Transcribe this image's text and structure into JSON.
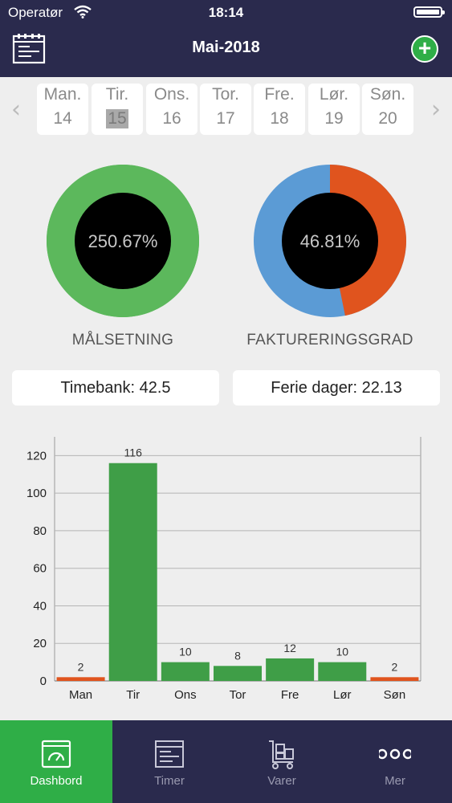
{
  "status_bar": {
    "carrier": "Operatør",
    "time": "18:14"
  },
  "header": {
    "title": "Mai-2018"
  },
  "week": {
    "days": [
      {
        "name": "Man.",
        "date": "14"
      },
      {
        "name": "Tir.",
        "date": "15"
      },
      {
        "name": "Ons.",
        "date": "16"
      },
      {
        "name": "Tor.",
        "date": "17"
      },
      {
        "name": "Fre.",
        "date": "18"
      },
      {
        "name": "Lør.",
        "date": "19"
      },
      {
        "name": "Søn.",
        "date": "20"
      }
    ],
    "selected_index": 1
  },
  "gauges": [
    {
      "value_text": "250.67%",
      "label": "MÅLSETNING",
      "fraction": 1.0,
      "colors": {
        "fill": "#5cb85c",
        "remainder": "#5cb85c"
      }
    },
    {
      "value_text": "46.81%",
      "label": "FAKTURERINGSGRAD",
      "fraction": 0.4681,
      "colors": {
        "fill": "#e0541e",
        "remainder": "#5b9bd5"
      }
    }
  ],
  "info": {
    "timebank": "Timebank: 42.5",
    "ferie": "Ferie dager: 22.13"
  },
  "chart_data": {
    "type": "bar",
    "categories": [
      "Man",
      "Tir",
      "Ons",
      "Tor",
      "Fre",
      "Lør",
      "Søn"
    ],
    "values": [
      2,
      116,
      10,
      8,
      12,
      10,
      2
    ],
    "value_labels": [
      "2",
      "116",
      "10",
      "8",
      "12",
      "10",
      "2"
    ],
    "bar_colors": [
      "#e0541e",
      "#3f9e47",
      "#3f9e47",
      "#3f9e47",
      "#3f9e47",
      "#3f9e47",
      "#e0541e"
    ],
    "ylim": [
      0,
      130
    ],
    "yticks": [
      0,
      20,
      40,
      60,
      80,
      100,
      120
    ],
    "grid": true
  },
  "tabs": [
    {
      "label": "Dashbord",
      "icon": "dashboard-icon",
      "active": true
    },
    {
      "label": "Timer",
      "icon": "timesheet-icon",
      "active": false
    },
    {
      "label": "Varer",
      "icon": "cart-icon",
      "active": false
    },
    {
      "label": "Mer",
      "icon": "more-icon",
      "active": false
    }
  ],
  "colors": {
    "header_bg": "#2a2a4d",
    "accent_green": "#2fae47",
    "bar_green": "#3f9e47",
    "bar_orange": "#e0541e",
    "gauge_blue": "#5b9bd5"
  }
}
